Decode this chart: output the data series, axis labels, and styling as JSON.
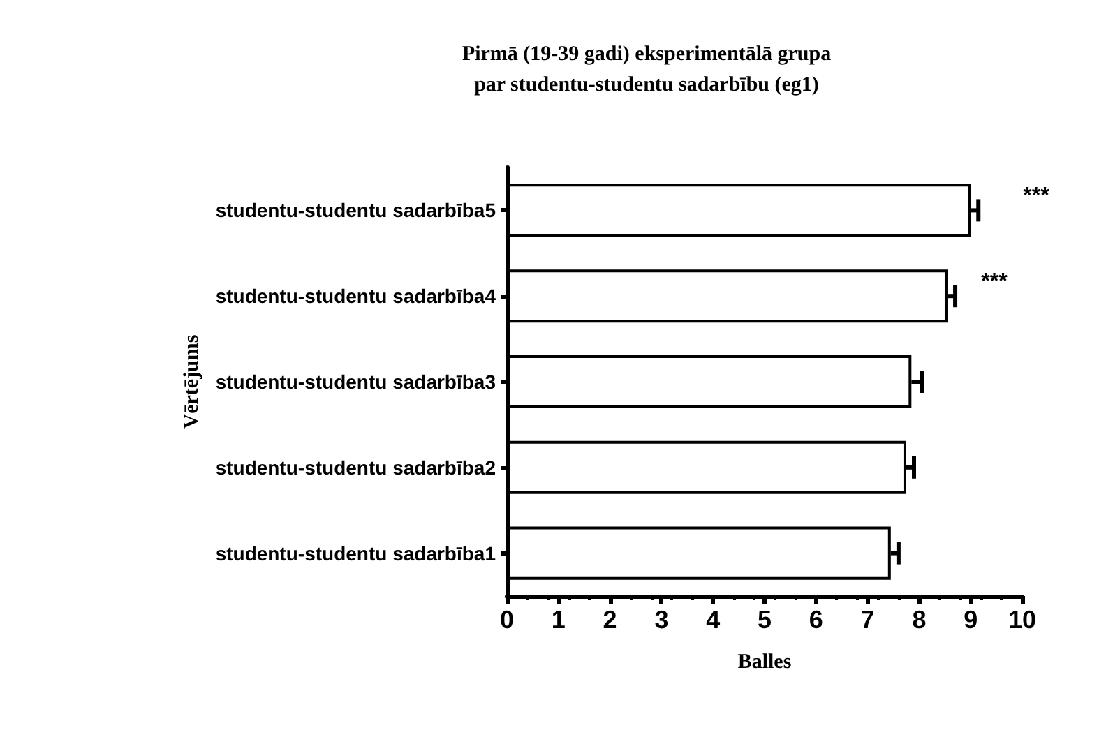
{
  "chart_data": {
    "type": "bar",
    "orientation": "horizontal",
    "title": "Pirmā (19-39 gadi) eksperimentālā grupa\npar studentu-studentu sadarbību (eg1)",
    "xlabel": "Balles",
    "ylabel": "Vērtējums",
    "categories": [
      "studentu-studentu sadarbība5",
      "studentu-studentu sadarbība4",
      "studentu-studentu sadarbība3",
      "studentu-studentu sadarbība2",
      "studentu-studentu sadarbība1"
    ],
    "values": [
      9.0,
      8.55,
      7.85,
      7.75,
      7.45
    ],
    "errors": [
      [
        9.0,
        9.15
      ],
      [
        8.55,
        8.7
      ],
      [
        7.85,
        8.05
      ],
      [
        7.75,
        7.9
      ],
      [
        7.45,
        7.6
      ]
    ],
    "color": "#ffffff",
    "xlim": [
      0,
      10
    ],
    "xticks": [
      0,
      1,
      2,
      3,
      4,
      5,
      6,
      7,
      8,
      9,
      10
    ],
    "annotations": [
      "***",
      "***"
    ],
    "grid": false
  }
}
